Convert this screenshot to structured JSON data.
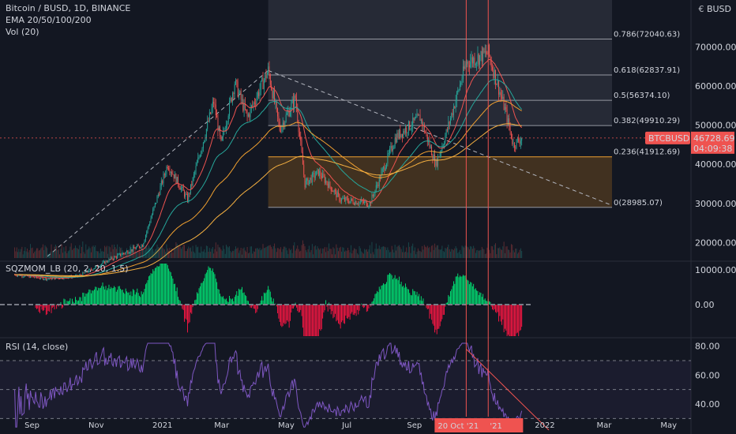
{
  "legend": {
    "symbol": "Bitcoin / BUSD, 1D, BINANCE",
    "ema": "EMA 20/50/100/200",
    "vol": "Vol (20)"
  },
  "currency": "BUSD",
  "currency_icon": "dollar-icon",
  "sqz_label": "SQZMOM_LB (20, 2, 20, 1.5)",
  "rsi_label": "RSI (14, close)",
  "price_tag": {
    "symbol": "BTCBUSD",
    "price": "46728.69",
    "countdown": "04:09:38"
  },
  "date_tag": {
    "left": "20 Oct '21",
    "right": "'21"
  },
  "colors": {
    "up": "#26a69a",
    "down": "#ef5350",
    "bg": "#131722",
    "ema20": "#ef5350",
    "ema50": "#26a69a",
    "ema100": "#f0a030",
    "ema200": "#f5b041",
    "rsi": "#7e57c2",
    "sqz_pos": "#00e676",
    "sqz_neg": "#ff1744",
    "fib_zone": "#7a5320"
  },
  "chart_data": {
    "type": "candlestick",
    "x_ticks": [
      "Sep",
      "Nov",
      "2021",
      "Mar",
      "May",
      "Jul",
      "Sep",
      "2022",
      "Mar",
      "May"
    ],
    "price_axis": [
      "70000.00",
      "60000.00",
      "50000.00",
      "40000.00",
      "30000.00",
      "20000.00"
    ],
    "ylim": [
      13000,
      80000
    ],
    "fib_levels": [
      {
        "ratio": "0.786",
        "price": 72040.63,
        "label": "0.786(72040.63)"
      },
      {
        "ratio": "0.618",
        "price": 62837.91,
        "label": "0.618(62837.91)"
      },
      {
        "ratio": "0.5",
        "price": 56374.1,
        "label": "0.5(56374.10)"
      },
      {
        "ratio": "0.382",
        "price": 49910.29,
        "label": "0.382(49910.29)"
      },
      {
        "ratio": "0.236",
        "price": 41912.69,
        "label": "0.236(41912.69)"
      },
      {
        "ratio": "0",
        "price": 28985.07,
        "label": "0(28985.07)"
      }
    ],
    "price_path": [
      [
        "2020-08-15",
        11800
      ],
      [
        "2020-09-15",
        10700
      ],
      [
        "2020-10-15",
        11400
      ],
      [
        "2020-11-15",
        15800
      ],
      [
        "2020-12-15",
        19400
      ],
      [
        "2021-01-08",
        40000
      ],
      [
        "2021-01-27",
        31000
      ],
      [
        "2021-02-21",
        56000
      ],
      [
        "2021-02-28",
        45000
      ],
      [
        "2021-03-13",
        61000
      ],
      [
        "2021-03-25",
        52000
      ],
      [
        "2021-04-14",
        64000
      ],
      [
        "2021-04-25",
        49000
      ],
      [
        "2021-05-10",
        57000
      ],
      [
        "2021-05-19",
        35000
      ],
      [
        "2021-06-01",
        38000
      ],
      [
        "2021-06-22",
        31000
      ],
      [
        "2021-07-20",
        30000
      ],
      [
        "2021-08-14",
        47000
      ],
      [
        "2021-09-06",
        52000
      ],
      [
        "2021-09-21",
        40000
      ],
      [
        "2021-10-01",
        48000
      ],
      [
        "2021-10-20",
        66000
      ],
      [
        "2021-11-10",
        68500
      ],
      [
        "2021-11-26",
        54000
      ],
      [
        "2021-12-04",
        45000
      ],
      [
        "2021-12-12",
        46728.69
      ]
    ],
    "sqz_axis": [
      "10000.00",
      "0.00"
    ],
    "rsi_axis": [
      "80.00",
      "60.00",
      "40.00"
    ],
    "rsi_bands": [
      70,
      50,
      30
    ]
  }
}
